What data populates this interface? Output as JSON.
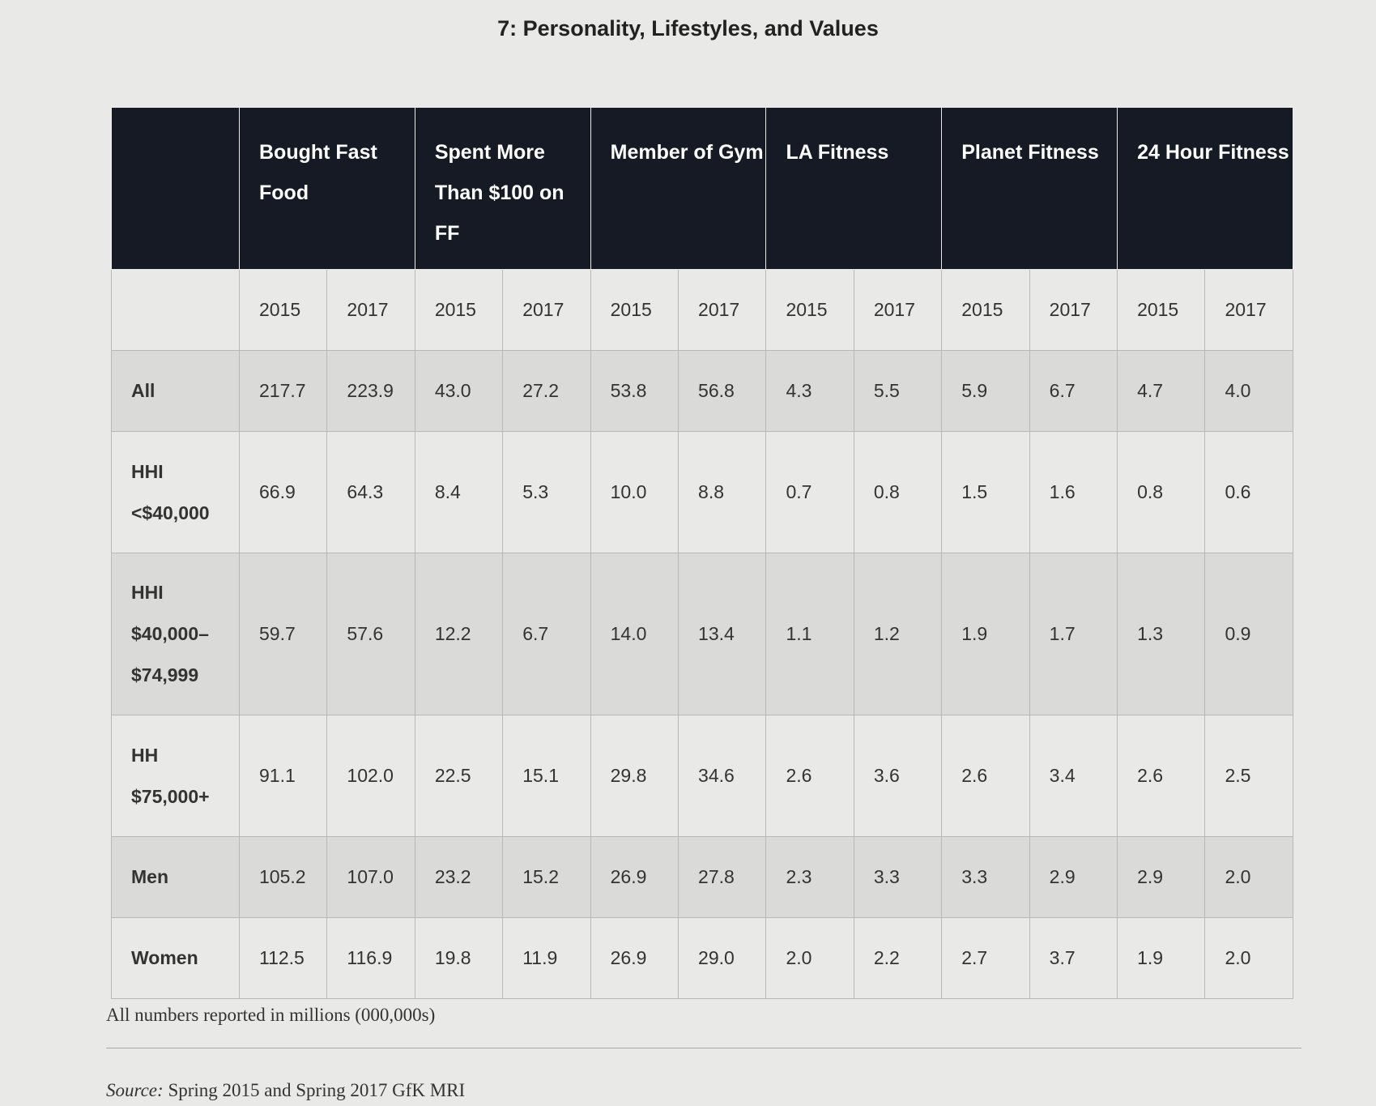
{
  "title": "7: Personality, Lifestyles, and Values",
  "table": {
    "headers": [
      "Bought Fast Food",
      "Spent More Than $100 on FF",
      "Member of Gym",
      "LA Fitness",
      "Planet Fitness",
      "24 Hour Fitness"
    ],
    "years": [
      "2015",
      "2017",
      "2015",
      "2017",
      "2015",
      "2017",
      "2015",
      "2017",
      "2015",
      "2017",
      "2015",
      "2017"
    ],
    "rows": [
      {
        "label": "All",
        "values": [
          "217.7",
          "223.9",
          "43.0",
          "27.2",
          "53.8",
          "56.8",
          "4.3",
          "5.5",
          "5.9",
          "6.7",
          "4.7",
          "4.0"
        ]
      },
      {
        "label": "HHI <$40,000",
        "values": [
          "66.9",
          "64.3",
          "8.4",
          "5.3",
          "10.0",
          "8.8",
          "0.7",
          "0.8",
          "1.5",
          "1.6",
          "0.8",
          "0.6"
        ]
      },
      {
        "label": "HHI $40,000–$74,999",
        "values": [
          "59.7",
          "57.6",
          "12.2",
          "6.7",
          "14.0",
          "13.4",
          "1.1",
          "1.2",
          "1.9",
          "1.7",
          "1.3",
          "0.9"
        ]
      },
      {
        "label": "HH $75,000+",
        "values": [
          "91.1",
          "102.0",
          "22.5",
          "15.1",
          "29.8",
          "34.6",
          "2.6",
          "3.6",
          "2.6",
          "3.4",
          "2.6",
          "2.5"
        ]
      },
      {
        "label": "Men",
        "values": [
          "105.2",
          "107.0",
          "23.2",
          "15.2",
          "26.9",
          "27.8",
          "2.3",
          "3.3",
          "3.3",
          "2.9",
          "2.9",
          "2.0"
        ]
      },
      {
        "label": "Women",
        "values": [
          "112.5",
          "116.9",
          "19.8",
          "11.9",
          "26.9",
          "29.0",
          "2.0",
          "2.2",
          "2.7",
          "3.7",
          "1.9",
          "2.0"
        ]
      }
    ]
  },
  "footnote": "All numbers reported in millions (000,000s)",
  "source": {
    "label": "Source:",
    "text": "Spring 2015 and Spring 2017 GfK MRI"
  }
}
